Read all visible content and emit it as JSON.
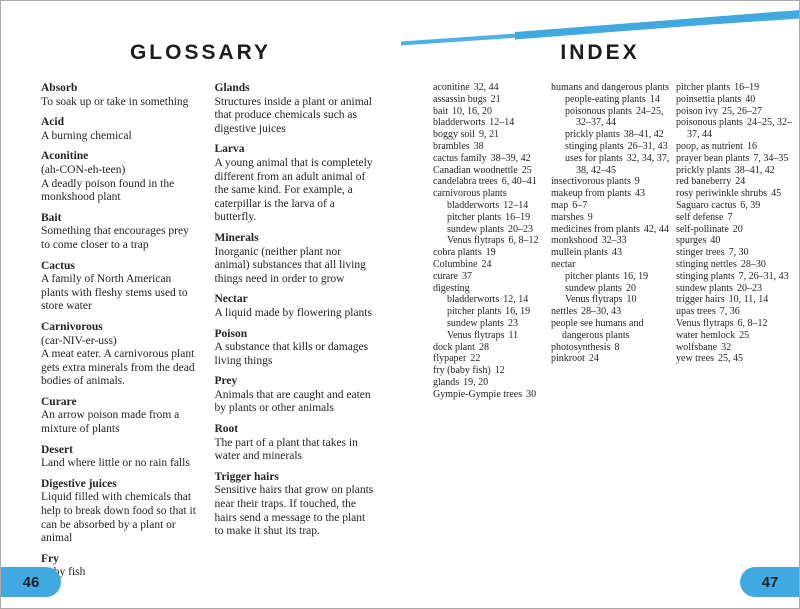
{
  "colors": {
    "accent": "#42a9e0",
    "stripe_thin": "#4fb0e4",
    "text": "#282422",
    "tab_text": "#15222e"
  },
  "glossary": {
    "title": "GLOSSARY",
    "page_number": "46",
    "columns": [
      [
        {
          "term": "Absorb",
          "definition": "To soak up or take in something"
        },
        {
          "term": "Acid",
          "definition": "A burning chemical"
        },
        {
          "term": "Aconitine",
          "definition": "(ah-CON-eh-teen)\nA deadly poison found in the monkshood plant"
        },
        {
          "term": "Bait",
          "definition": "Something that encourages prey to come closer to a trap"
        },
        {
          "term": "Cactus",
          "definition": "A family of North American plants with fleshy stems used to store water"
        },
        {
          "term": "Carnivorous",
          "definition": "(car-NIV-er-uss)\nA meat eater. A carnivorous plant gets extra minerals from the dead bodies of animals."
        },
        {
          "term": "Curare",
          "definition": "An arrow poison made from a mixture of plants"
        },
        {
          "term": "Desert",
          "definition": "Land where little or no rain falls"
        },
        {
          "term": "Digestive juices",
          "definition": "Liquid filled with chemicals that help to break down food so that it can be absorbed by a plant or animal"
        },
        {
          "term": "Fry",
          "definition": "Baby fish"
        }
      ],
      [
        {
          "term": "Glands",
          "definition": "Structures inside a plant or animal that produce chemicals such as digestive juices"
        },
        {
          "term": "Larva",
          "definition": "A young animal that is completely different from an adult animal of the same kind. For example, a caterpillar is the larva of a butterfly."
        },
        {
          "term": "Minerals",
          "definition": "Inorganic (neither plant nor animal) substances that all living things need in order to grow"
        },
        {
          "term": "Nectar",
          "definition": "A liquid made by flowering plants"
        },
        {
          "term": "Poison",
          "definition": "A substance that kills or damages living things"
        },
        {
          "term": "Prey",
          "definition": "Animals that are caught and eaten by plants or other animals"
        },
        {
          "term": "Root",
          "definition": "The part of a plant that takes in water and minerals"
        },
        {
          "term": "Trigger hairs",
          "definition": "Sensitive hairs that grow on plants near their traps. If touched, the hairs send a message to the plant to make it shut its trap."
        }
      ]
    ]
  },
  "index": {
    "title": "INDEX",
    "page_number": "47",
    "columns": [
      [
        {
          "text": "aconitine",
          "pages": "32, 44",
          "indent": 0
        },
        {
          "text": "assassin bugs",
          "pages": "21",
          "indent": 0
        },
        {
          "text": "bait",
          "pages": "10, 16, 20",
          "indent": 0
        },
        {
          "text": "bladderworts",
          "pages": "12–14",
          "indent": 0
        },
        {
          "text": "boggy soil",
          "pages": "9, 21",
          "indent": 0
        },
        {
          "text": "brambles",
          "pages": "38",
          "indent": 0
        },
        {
          "text": "cactus family",
          "pages": "38–39, 42",
          "indent": 0
        },
        {
          "text": "Canadian woodnettle",
          "pages": "25",
          "indent": 0
        },
        {
          "text": "candelabra trees",
          "pages": "6, 40–41",
          "indent": 0
        },
        {
          "text": "carnivorous plants",
          "pages": "",
          "indent": 0
        },
        {
          "text": "bladderworts",
          "pages": "12–14",
          "indent": 1
        },
        {
          "text": "pitcher plants",
          "pages": "16–19",
          "indent": 1
        },
        {
          "text": "sundew plants",
          "pages": "20–23",
          "indent": 1
        },
        {
          "text": "Venus flytraps",
          "pages": "6, 8–12",
          "indent": 1
        },
        {
          "text": "cobra plants",
          "pages": "19",
          "indent": 0
        },
        {
          "text": "Columbine",
          "pages": "24",
          "indent": 0
        },
        {
          "text": "curare",
          "pages": "37",
          "indent": 0
        },
        {
          "text": "digesting",
          "pages": "",
          "indent": 0
        },
        {
          "text": "bladderworts",
          "pages": "12, 14",
          "indent": 1
        },
        {
          "text": "pitcher plants",
          "pages": "16, 19",
          "indent": 1
        },
        {
          "text": "sundew plants",
          "pages": "23",
          "indent": 1
        },
        {
          "text": "Venus flytraps",
          "pages": "11",
          "indent": 1
        },
        {
          "text": "dock plant",
          "pages": "28",
          "indent": 0
        },
        {
          "text": "flypaper",
          "pages": "22",
          "indent": 0
        },
        {
          "text": "fry (baby fish)",
          "pages": "12",
          "indent": 0
        },
        {
          "text": "glands",
          "pages": "19, 20",
          "indent": 0
        },
        {
          "text": "Gympie-Gympie trees",
          "pages": "30",
          "indent": 0
        }
      ],
      [
        {
          "text": "humans and dangerous plants",
          "pages": "",
          "indent": 0
        },
        {
          "text": "people-eating plants",
          "pages": "14",
          "indent": 1
        },
        {
          "text": "poisonous plants",
          "pages": "24–25, 32–37, 44",
          "indent": 1
        },
        {
          "text": "prickly plants",
          "pages": "38–41, 42",
          "indent": 1
        },
        {
          "text": "stinging plants",
          "pages": "26–31, 43",
          "indent": 1
        },
        {
          "text": "uses for plants",
          "pages": "32, 34, 37, 38, 42–45",
          "indent": 1
        },
        {
          "text": "insectivorous plants",
          "pages": "9",
          "indent": 0
        },
        {
          "text": "makeup from plants",
          "pages": "43",
          "indent": 0
        },
        {
          "text": "map",
          "pages": "6–7",
          "indent": 0
        },
        {
          "text": "marshes",
          "pages": "9",
          "indent": 0
        },
        {
          "text": "medicines from plants",
          "pages": "42, 44",
          "indent": 0
        },
        {
          "text": "monkshood",
          "pages": "32–33",
          "indent": 0
        },
        {
          "text": "mullein plants",
          "pages": "43",
          "indent": 0
        },
        {
          "text": "nectar",
          "pages": "",
          "indent": 0
        },
        {
          "text": "pitcher plants",
          "pages": "16, 19",
          "indent": 1
        },
        {
          "text": "sundew plants",
          "pages": "20",
          "indent": 1
        },
        {
          "text": "Venus flytraps",
          "pages": "10",
          "indent": 1
        },
        {
          "text": "nettles",
          "pages": "28–30, 43",
          "indent": 0
        },
        {
          "text": "people see humans and dangerous plants",
          "pages": "",
          "indent": 0
        },
        {
          "text": "photosynthesis",
          "pages": "8",
          "indent": 0
        },
        {
          "text": "pinkroot",
          "pages": "24",
          "indent": 0
        }
      ],
      [
        {
          "text": "pitcher plants",
          "pages": "16–19",
          "indent": 0
        },
        {
          "text": "poinsettia plants",
          "pages": "40",
          "indent": 0
        },
        {
          "text": "poison ivy",
          "pages": "25, 26–27",
          "indent": 0
        },
        {
          "text": "poisonous plants",
          "pages": "24–25, 32–37, 44",
          "indent": 0
        },
        {
          "text": "poop, as nutrient",
          "pages": "16",
          "indent": 0
        },
        {
          "text": "prayer bean plants",
          "pages": "7, 34–35",
          "indent": 0
        },
        {
          "text": "prickly plants",
          "pages": "38–41, 42",
          "indent": 0
        },
        {
          "text": "red baneberry",
          "pages": "24",
          "indent": 0
        },
        {
          "text": "rosy periwinkle shrubs",
          "pages": "45",
          "indent": 0
        },
        {
          "text": "Saguaro cactus",
          "pages": "6, 39",
          "indent": 0
        },
        {
          "text": "self defense",
          "pages": "7",
          "indent": 0
        },
        {
          "text": "self-pollinate",
          "pages": "20",
          "indent": 0
        },
        {
          "text": "spurges",
          "pages": "40",
          "indent": 0
        },
        {
          "text": "stinger trees",
          "pages": "7, 30",
          "indent": 0
        },
        {
          "text": "stinging nettles",
          "pages": "28–30",
          "indent": 0
        },
        {
          "text": "stinging plants",
          "pages": "7, 26–31, 43",
          "indent": 0
        },
        {
          "text": "sundew plants",
          "pages": "20–23",
          "indent": 0
        },
        {
          "text": "trigger hairs",
          "pages": "10, 11, 14",
          "indent": 0
        },
        {
          "text": "upas trees",
          "pages": "7, 36",
          "indent": 0
        },
        {
          "text": "Venus flytraps",
          "pages": "6, 8–12",
          "indent": 0
        },
        {
          "text": "water hemlock",
          "pages": "25",
          "indent": 0
        },
        {
          "text": "wolfsbane",
          "pages": "32",
          "indent": 0
        },
        {
          "text": "yew trees",
          "pages": "25, 45",
          "indent": 0
        }
      ]
    ]
  }
}
